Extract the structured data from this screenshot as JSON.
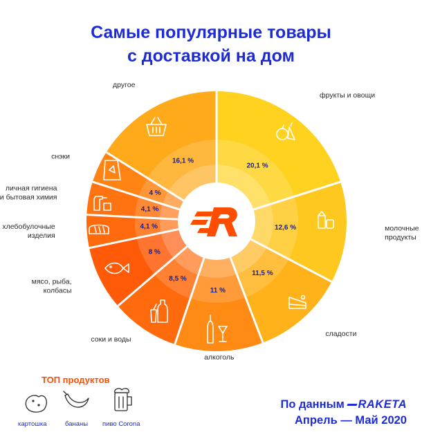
{
  "title": {
    "line1": "Самые популярные товары",
    "line2": "с доставкой на дом"
  },
  "chart_data": {
    "type": "pie",
    "categories": [
      "фрукты и овощи",
      "молочные продукты",
      "сладости",
      "алкоголь",
      "соки и воды",
      "мясо, рыба, колбасы",
      "хлебобулочные изделия",
      "личная гигиена и бытовая химия",
      "снэки",
      "другое"
    ],
    "values": [
      20.1,
      12.6,
      11.5,
      11,
      8.5,
      8,
      4.1,
      4.1,
      4,
      16.1
    ],
    "labels": [
      "20,1 %",
      "12,6 %",
      "11,5 %",
      "11 %",
      "8,5 %",
      "8 %",
      "4,1 %",
      "4,1 %",
      "4 %",
      "16,1 %"
    ],
    "unit": "%",
    "colors": [
      "#ffd21f",
      "#ffc81f",
      "#ffb21a",
      "#ff8a14",
      "#ff6a0c",
      "#ff5a08",
      "#ff6a0c",
      "#ff7410",
      "#ff8414",
      "#ffaa1a"
    ]
  },
  "top_products": {
    "title": "ТОП продуктов",
    "items": [
      {
        "label": "картошка",
        "icon": "potato-icon"
      },
      {
        "label": "бананы",
        "icon": "banana-icon"
      },
      {
        "label": "пиво Corona",
        "icon": "beer-icon"
      }
    ]
  },
  "source": {
    "prefix": "По данным",
    "brand": "RAKETA",
    "period": "Апрель — Май 2020"
  },
  "accent_color": "#1d2bd6",
  "logo_color": "#ff4d00"
}
